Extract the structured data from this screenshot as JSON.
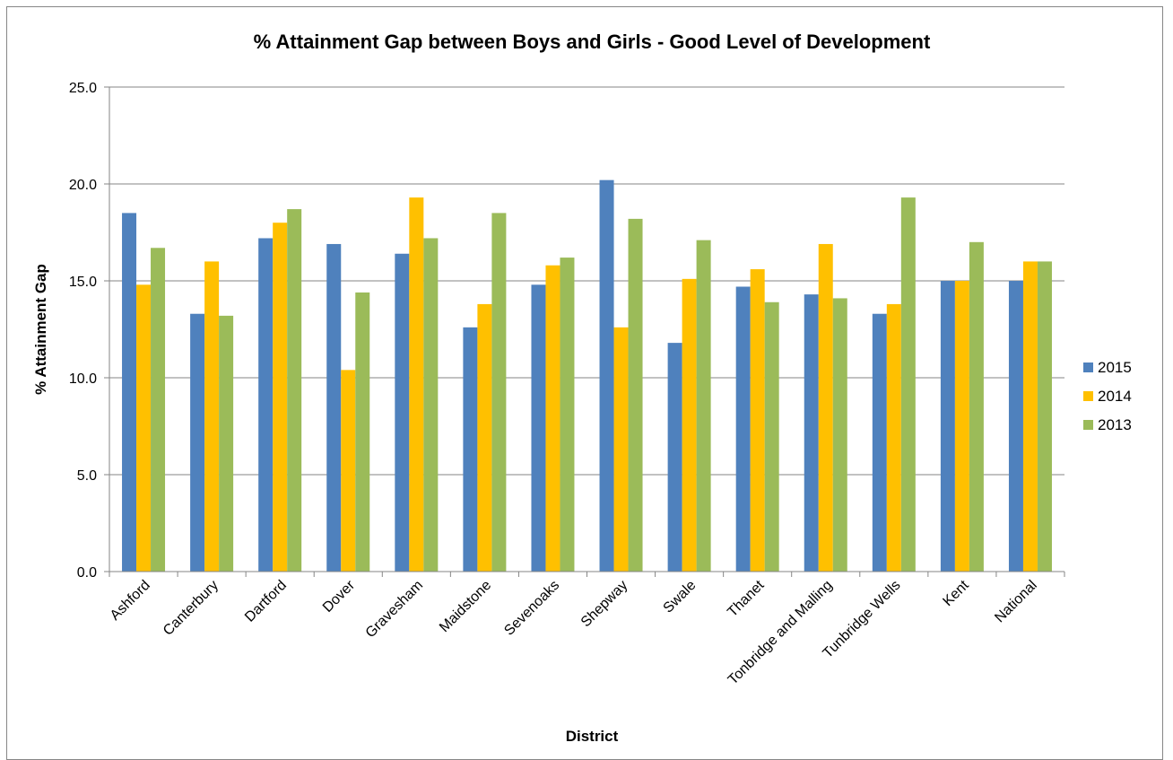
{
  "chart_data": {
    "type": "bar",
    "title": "% Attainment Gap between Boys and Girls - Good Level of Development",
    "xlabel": "District",
    "ylabel": "% Attainment Gap",
    "ylim": [
      0,
      25
    ],
    "ytick_step": 5,
    "ytick_labels": [
      "0.0",
      "5.0",
      "10.0",
      "15.0",
      "20.0",
      "25.0"
    ],
    "grid": true,
    "legend_position": "right",
    "categories": [
      "Ashford",
      "Canterbury",
      "Dartford",
      "Dover",
      "Gravesham",
      "Maidstone",
      "Sevenoaks",
      "Shepway",
      "Swale",
      "Thanet",
      "Tonbridge and Malling",
      "Tunbridge Wells",
      "Kent",
      "National"
    ],
    "series": [
      {
        "name": "2015",
        "color": "#4F81BD",
        "values": [
          18.5,
          13.3,
          17.2,
          16.9,
          16.4,
          12.6,
          14.8,
          20.2,
          11.8,
          14.7,
          14.3,
          13.3,
          15.0,
          15.0
        ]
      },
      {
        "name": "2014",
        "color": "#FFC000",
        "values": [
          14.8,
          16.0,
          18.0,
          10.4,
          19.3,
          13.8,
          15.8,
          12.6,
          15.1,
          15.6,
          16.9,
          13.8,
          15.0,
          16.0
        ]
      },
      {
        "name": "2013",
        "color": "#9BBB59",
        "values": [
          16.7,
          13.2,
          18.7,
          14.4,
          17.2,
          18.5,
          16.2,
          18.2,
          17.1,
          13.9,
          14.1,
          19.3,
          17.0,
          16.0
        ]
      }
    ]
  }
}
